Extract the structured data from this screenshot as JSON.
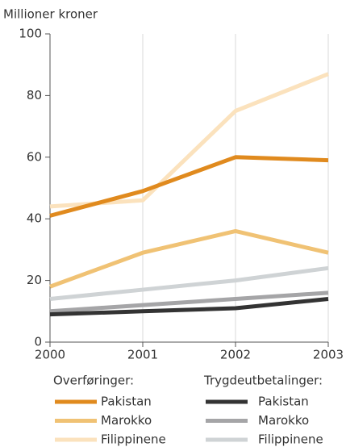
{
  "chart_data": {
    "type": "line",
    "y_label": "Millioner kroner",
    "x": [
      2000,
      2001,
      2002,
      2003
    ],
    "xlim": [
      2000,
      2003
    ],
    "xticks": [
      2000,
      2001,
      2002,
      2003
    ],
    "ylim": [
      0,
      100
    ],
    "yticks": [
      0,
      20,
      40,
      60,
      80,
      100
    ],
    "grid": true,
    "series_groups": [
      {
        "title": "Overføringer:",
        "series": [
          {
            "name": "Pakistan",
            "color": "#e08a1e",
            "values": [
              41,
              49,
              60,
              59
            ]
          },
          {
            "name": "Marokko",
            "color": "#f0c274",
            "values": [
              18,
              29,
              36,
              29
            ]
          },
          {
            "name": "Filippinene",
            "color": "#fbe2bd",
            "values": [
              44,
              46,
              75,
              87
            ]
          }
        ]
      },
      {
        "title": "Trygdeutbetalinger:",
        "series": [
          {
            "name": "Pakistan",
            "color": "#333333",
            "values": [
              9,
              10,
              11,
              14
            ]
          },
          {
            "name": "Marokko",
            "color": "#a5a5a7",
            "values": [
              10,
              12,
              14,
              16
            ]
          },
          {
            "name": "Filippinene",
            "color": "#cfd3d5",
            "values": [
              14,
              17,
              20,
              24
            ]
          }
        ]
      }
    ]
  }
}
